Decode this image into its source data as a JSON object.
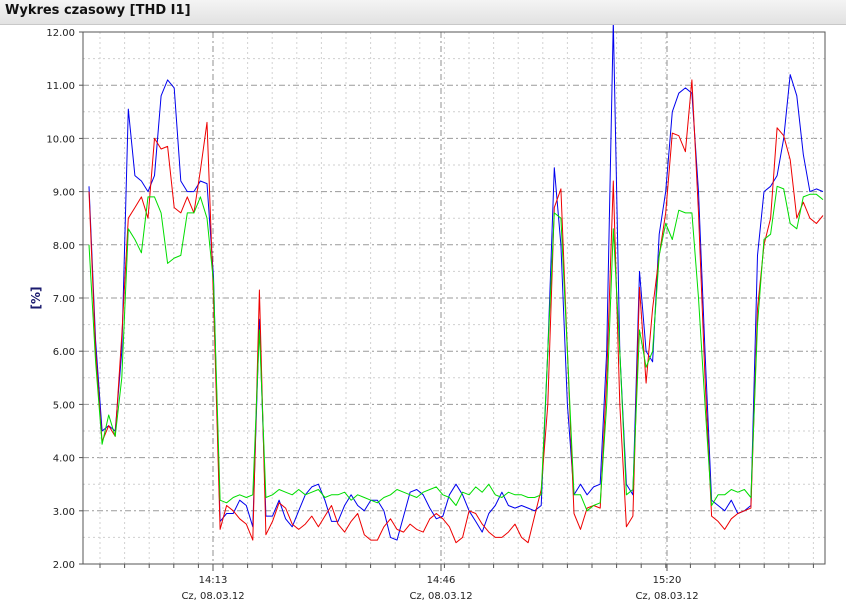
{
  "window": {
    "title": "Wykres czasowy [THD I1]"
  },
  "colors": {
    "blue": "#0000ee",
    "red": "#ee0000",
    "green": "#00dd00",
    "grid": "#b4b4b4",
    "axis": "#555555"
  },
  "chart_data": {
    "type": "line",
    "title": "",
    "xlabel": "",
    "ylabel": "[%]",
    "ylim": [
      2.0,
      12.0
    ],
    "yticks": [
      "2.00",
      "3.00",
      "4.00",
      "5.00",
      "6.00",
      "7.00",
      "8.00",
      "9.00",
      "10.00",
      "11.00",
      "12.00"
    ],
    "xticks": [
      {
        "time": "14:13",
        "date": "Cz, 08.03.12"
      },
      {
        "time": "14:46",
        "date": "Cz, 08.03.12"
      },
      {
        "time": "15:20",
        "date": "Cz, 08.03.12"
      }
    ],
    "grid": true,
    "series": [
      {
        "color": "blue",
        "values": [
          9.1,
          6.2,
          4.5,
          4.6,
          4.5,
          6.0,
          10.55,
          9.3,
          9.2,
          9.0,
          9.3,
          10.8,
          11.1,
          10.95,
          9.2,
          9.0,
          9.0,
          9.2,
          9.15,
          7.4,
          2.8,
          2.95,
          2.95,
          3.2,
          3.1,
          2.7,
          6.6,
          2.9,
          2.9,
          3.2,
          2.85,
          2.7,
          3.0,
          3.3,
          3.45,
          3.5,
          3.2,
          2.8,
          2.8,
          3.1,
          3.3,
          3.1,
          3.0,
          3.2,
          3.2,
          3.0,
          2.5,
          2.45,
          2.9,
          3.35,
          3.4,
          3.3,
          3.05,
          2.85,
          2.9,
          3.3,
          3.5,
          3.3,
          3.0,
          2.8,
          2.6,
          2.95,
          3.1,
          3.35,
          3.1,
          3.05,
          3.1,
          3.05,
          3.0,
          3.1,
          6.0,
          9.45,
          8.0,
          5.0,
          3.3,
          3.5,
          3.3,
          3.45,
          3.5,
          6.0,
          12.2,
          6.0,
          3.5,
          3.3,
          7.5,
          6.0,
          5.8,
          8.2,
          9.0,
          10.5,
          10.85,
          10.95,
          10.85,
          9.0,
          6.0,
          3.2,
          3.1,
          3.0,
          3.2,
          2.95,
          3.0,
          3.1,
          7.8,
          9.0,
          9.1,
          9.3,
          10.0,
          11.2,
          10.8,
          9.7,
          9.0,
          9.05,
          9.0
        ]
      },
      {
        "color": "red",
        "values": [
          9.0,
          6.0,
          4.3,
          4.6,
          4.4,
          6.3,
          8.5,
          8.7,
          8.9,
          8.5,
          10.0,
          9.8,
          9.85,
          8.7,
          8.6,
          8.9,
          8.6,
          9.4,
          10.3,
          7.0,
          2.65,
          3.1,
          3.0,
          2.85,
          2.75,
          2.45,
          7.15,
          2.55,
          2.8,
          3.15,
          3.05,
          2.75,
          2.65,
          2.75,
          2.9,
          2.7,
          2.9,
          3.1,
          2.75,
          2.6,
          2.8,
          2.95,
          2.55,
          2.45,
          2.45,
          2.7,
          2.85,
          2.65,
          2.6,
          2.75,
          2.65,
          2.6,
          2.85,
          2.95,
          2.85,
          2.7,
          2.4,
          2.5,
          3.0,
          2.95,
          2.75,
          2.6,
          2.5,
          2.5,
          2.6,
          2.75,
          2.5,
          2.4,
          2.9,
          3.4,
          5.0,
          8.7,
          9.05,
          6.0,
          2.95,
          2.65,
          3.05,
          3.1,
          3.05,
          5.5,
          9.2,
          5.0,
          2.7,
          2.9,
          7.2,
          5.4,
          6.8,
          7.8,
          8.6,
          10.1,
          10.05,
          9.75,
          11.1,
          8.6,
          5.5,
          2.9,
          2.8,
          2.65,
          2.85,
          2.95,
          3.0,
          3.05,
          6.8,
          8.0,
          8.5,
          10.2,
          10.05,
          9.6,
          8.5,
          8.8,
          8.5,
          8.4,
          8.55
        ]
      },
      {
        "color": "green",
        "values": [
          8.0,
          5.8,
          4.25,
          4.8,
          4.4,
          5.5,
          8.3,
          8.1,
          7.85,
          8.9,
          8.9,
          8.6,
          7.65,
          7.75,
          7.8,
          8.6,
          8.6,
          8.9,
          8.5,
          7.3,
          3.2,
          3.15,
          3.25,
          3.3,
          3.25,
          3.3,
          6.4,
          3.25,
          3.3,
          3.4,
          3.35,
          3.3,
          3.4,
          3.3,
          3.35,
          3.4,
          3.25,
          3.3,
          3.3,
          3.35,
          3.2,
          3.3,
          3.25,
          3.2,
          3.15,
          3.25,
          3.3,
          3.4,
          3.35,
          3.3,
          3.25,
          3.35,
          3.4,
          3.45,
          3.3,
          3.25,
          3.1,
          3.35,
          3.3,
          3.45,
          3.35,
          3.5,
          3.3,
          3.25,
          3.35,
          3.3,
          3.3,
          3.25,
          3.25,
          3.3,
          6.0,
          8.6,
          8.5,
          6.0,
          3.3,
          3.3,
          3.0,
          3.1,
          3.15,
          5.0,
          8.3,
          6.0,
          3.3,
          3.4,
          6.4,
          5.7,
          6.0,
          7.8,
          8.4,
          8.1,
          8.65,
          8.6,
          8.6,
          7.0,
          5.0,
          3.1,
          3.3,
          3.3,
          3.4,
          3.35,
          3.4,
          3.25,
          6.5,
          8.1,
          8.2,
          9.1,
          9.05,
          8.4,
          8.3,
          8.9,
          8.95,
          8.95,
          8.85
        ]
      }
    ]
  }
}
